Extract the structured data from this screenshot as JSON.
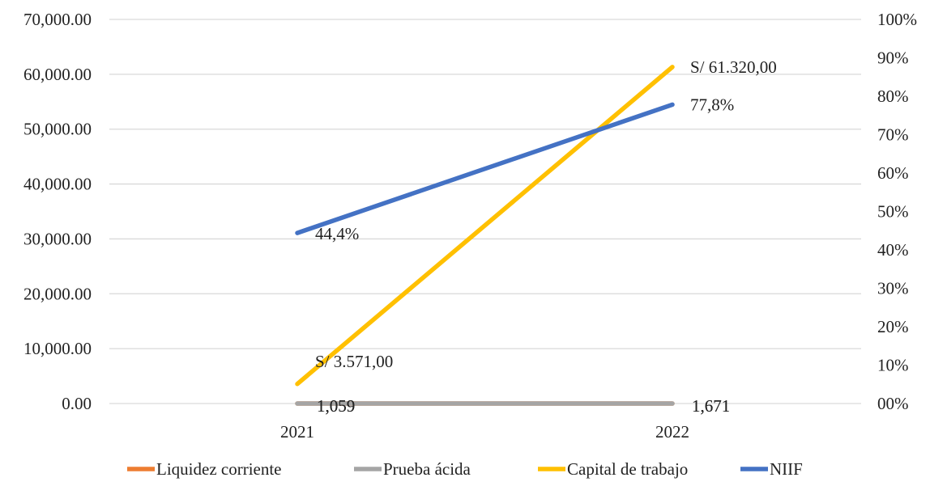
{
  "chart_data": {
    "type": "line",
    "title": "",
    "categories": [
      "2021",
      "2022"
    ],
    "y_left": {
      "ylim": [
        0,
        70000
      ],
      "tick_labels": [
        "0.00",
        "10,000.00",
        "20,000.00",
        "30,000.00",
        "40,000.00",
        "50,000.00",
        "60,000.00",
        "70,000.00"
      ]
    },
    "y_right": {
      "ylim": [
        0,
        1.0
      ],
      "tick_labels": [
        "00%",
        "10%",
        "20%",
        "30%",
        "40%",
        "50%",
        "60%",
        "70%",
        "80%",
        "90%",
        "100%"
      ]
    },
    "grid": true,
    "legend_position": "bottom",
    "series": [
      {
        "name": "Liquidez corriente",
        "axis": "left",
        "color": "#ED7D31",
        "values": [
          1.059,
          1.671
        ],
        "labels": [
          "1,059",
          "1,671"
        ]
      },
      {
        "name": "Prueba ácida",
        "axis": "left",
        "color": "#A5A5A5",
        "values": [
          1.059,
          1.671
        ],
        "labels": [
          "1,059",
          "1,671"
        ]
      },
      {
        "name": "Capital de trabajo",
        "axis": "left",
        "color": "#FFC000",
        "values": [
          3571,
          61320
        ],
        "labels": [
          "S/ 3.571,00",
          "S/ 61.320,00"
        ]
      },
      {
        "name": "NIIF",
        "axis": "right",
        "color": "#4472C4",
        "values": [
          0.444,
          0.778
        ],
        "labels": [
          "44,4%",
          "77,8%"
        ]
      }
    ]
  }
}
